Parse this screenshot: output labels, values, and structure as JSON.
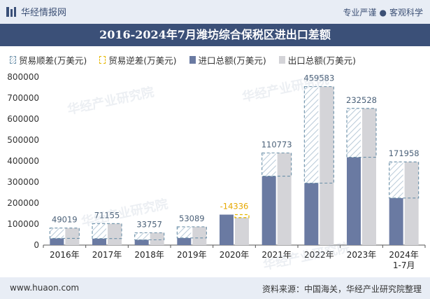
{
  "header": {
    "brand": "华经情报网",
    "slogan_left": "专业严谨",
    "slogan_right": "客观科学"
  },
  "watermark": "华经产业研究院",
  "footer": {
    "url": "www.huaon.com",
    "source": "资料来源：中国海关，华经产业研究院整理"
  },
  "chart_data": {
    "type": "bar",
    "title": "2016-2024年7月潍坊综合保税区进出口差额",
    "categories": [
      "2016年",
      "2017年",
      "2018年",
      "2019年",
      "2020年",
      "2021年",
      "2022年",
      "2023年",
      "2024年\n1-7月"
    ],
    "series": [
      {
        "name": "贸易顺差(万美元)",
        "values": [
          49019,
          71155,
          33757,
          53089,
          null,
          110773,
          459583,
          232528,
          171958
        ]
      },
      {
        "name": "贸易逆差(万美元)",
        "values": [
          null,
          null,
          null,
          null,
          -14336,
          null,
          null,
          null,
          null
        ]
      },
      {
        "name": "进口总额(万美元)",
        "values": [
          32000,
          31000,
          25000,
          34000,
          145000,
          328000,
          295000,
          418000,
          224000
        ]
      },
      {
        "name": "出口总额(万美元)",
        "values": [
          81019,
          102155,
          58757,
          87089,
          130664,
          438773,
          754583,
          650528,
          395958
        ]
      }
    ],
    "data_labels": [
      "49019",
      "71155",
      "33757",
      "53089",
      "-14336",
      "110773",
      "459583",
      "232528",
      "171958"
    ],
    "ylim": [
      0,
      800000
    ],
    "yticks": [
      0,
      100000,
      200000,
      300000,
      400000,
      500000,
      600000,
      700000,
      800000
    ],
    "grid": false,
    "legend": "top-left",
    "colors": {
      "surplus_border": "#6a8fa8",
      "deficit_border": "#e6b800",
      "import": "#6a7aa2",
      "export": "#d4d4d8",
      "label": "#4a6078",
      "deficit_label": "#e6a800"
    }
  }
}
